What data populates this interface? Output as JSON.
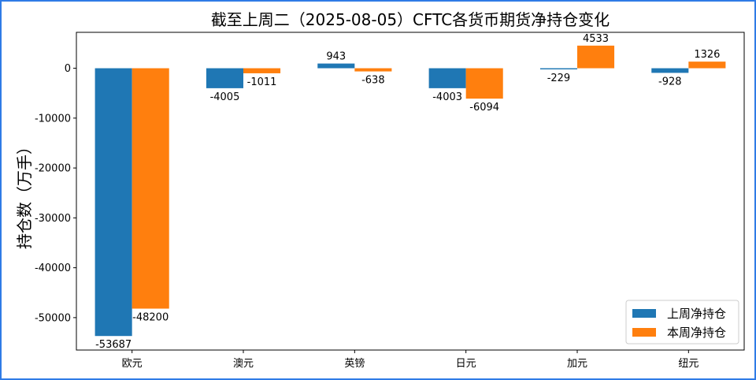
{
  "chart_data": {
    "type": "bar",
    "title": "截至上周二（2025-08-05）CFTC各货币期货净持仓变化",
    "xlabel": "",
    "ylabel": "持仓数（万手）",
    "categories": [
      "欧元",
      "澳元",
      "英镑",
      "日元",
      "加元",
      "纽元"
    ],
    "series": [
      {
        "name": "上周净持仓",
        "color": "#1f77b4",
        "values": [
          -53687,
          -4005,
          943,
          -4003,
          -229,
          -928
        ]
      },
      {
        "name": "本周净持仓",
        "color": "#ff7f0e",
        "values": [
          -48200,
          -1011,
          -638,
          -6094,
          4533,
          1326
        ]
      }
    ],
    "ylim": [
      -56500,
      7200
    ],
    "yticks": [
      0,
      -10000,
      -20000,
      -30000,
      -40000,
      -50000
    ],
    "legend": "lower-right",
    "grid": false
  }
}
